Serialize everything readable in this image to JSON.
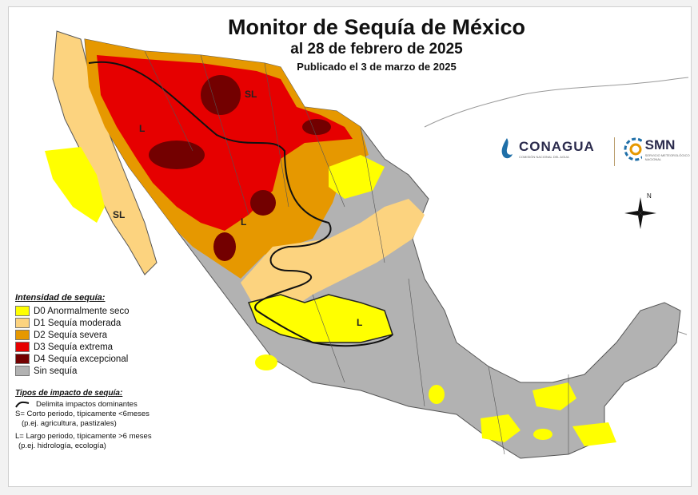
{
  "title": "Monitor de Sequía de México",
  "date_line": "al 28 de febrero de 2025",
  "published": "Publicado el 3 de marzo de 2025",
  "map_labels": {
    "sl_nw": "SL",
    "sl_baja": "SL",
    "l_sonora": "L",
    "l_chihuahua": "L",
    "l_south": "L"
  },
  "legend": {
    "heading": "Intensidad de sequía:",
    "items": [
      {
        "label": "D0 Anormalmente seco",
        "color": "#ffff00"
      },
      {
        "label": "D1 Sequía moderada",
        "color": "#fcd37f"
      },
      {
        "label": "D2 Sequía severa",
        "color": "#e69800"
      },
      {
        "label": "D3 Sequía extrema",
        "color": "#e60000"
      },
      {
        "label": "D4 Sequía excepcional",
        "color": "#730000"
      },
      {
        "label": "Sin sequía",
        "color": "#b2b2b2"
      }
    ]
  },
  "impact": {
    "heading": "Tipos de impacto de sequía:",
    "line_desc": "Delimita impactos dominantes",
    "s_line1": "S= Corto periodo, típicamente <6meses",
    "s_line2": "(p.ej. agricultura, pastizales)",
    "l_line1": "L= Largo periodo, típicamente >6 meses",
    "l_line2": "(p.ej. hidrología, ecología)"
  },
  "logos": {
    "conagua": "CONAGUA",
    "conagua_sub": "COMISIÓN NACIONAL DEL AGUA",
    "smn": "SMN",
    "smn_sub": "SERVICIO METEOROLÓGICO NACIONAL"
  },
  "compass": {
    "north": "N"
  }
}
